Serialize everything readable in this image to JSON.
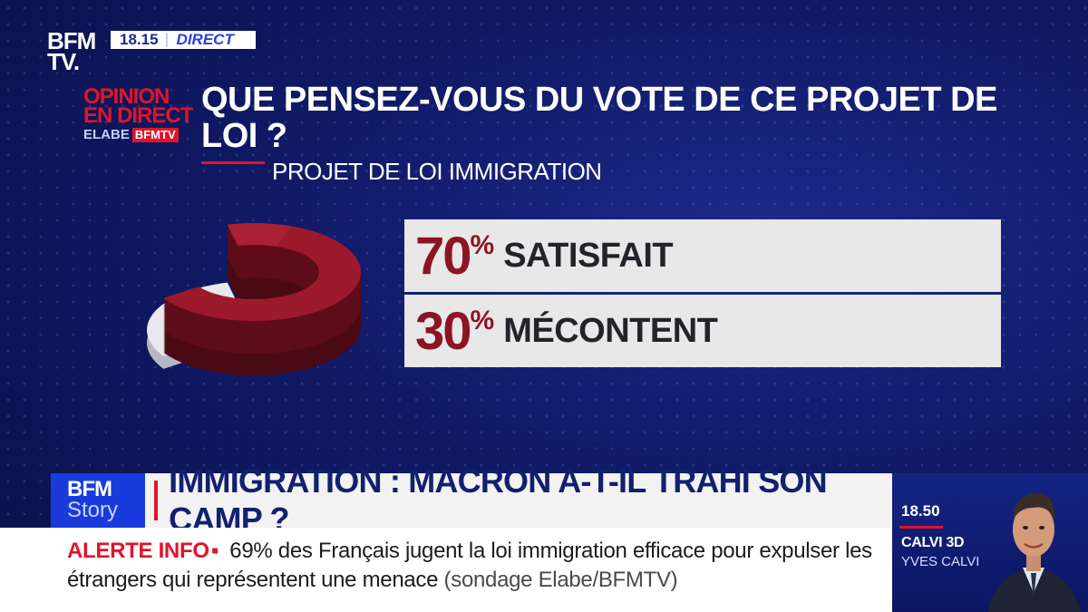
{
  "channel": {
    "logo_line1": "BFM",
    "logo_line2": "TV.",
    "time": "18.15",
    "live": "DIRECT"
  },
  "brand": {
    "line1": "OPINION",
    "line2": "EN DIRECT",
    "partner": "ELABE",
    "partner_channel": "BFMTV"
  },
  "question": "QUE PENSEZ-VOUS DU VOTE DE CE PROJET DE LOI ?",
  "subtitle": "PROJET DE LOI IMMIGRATION",
  "chart_data": {
    "type": "pie",
    "categories": [
      "SATISFAIT",
      "MÉCONTENT"
    ],
    "values": [
      70,
      30
    ],
    "unit": "%",
    "colors": [
      "#9c1a2c",
      "#e8e8ee"
    ]
  },
  "results": [
    {
      "value": "70",
      "unit": "%",
      "label": "SATISFAIT"
    },
    {
      "value": "30",
      "unit": "%",
      "label": "MÉCONTENT"
    }
  ],
  "headline": {
    "logo_line1": "BFM",
    "logo_line2": "Story",
    "text": "IMMIGRATION : MACRON A-T-IL TRAHI SON CAMP ?"
  },
  "program": {
    "time": "18.50",
    "name": "CALVI 3D",
    "host": "YVES CALVI"
  },
  "ticker": {
    "alert": "ALERTE INFO",
    "separator": "▪",
    "text": "69% des Français jugent la loi immigration efficace pour expulser les étrangers qui représentent une menace",
    "source": "(sondage Elabe/BFMTV)"
  },
  "colors": {
    "accent_red": "#e0142a",
    "result_red": "#8c1424",
    "background": "#101a66"
  }
}
